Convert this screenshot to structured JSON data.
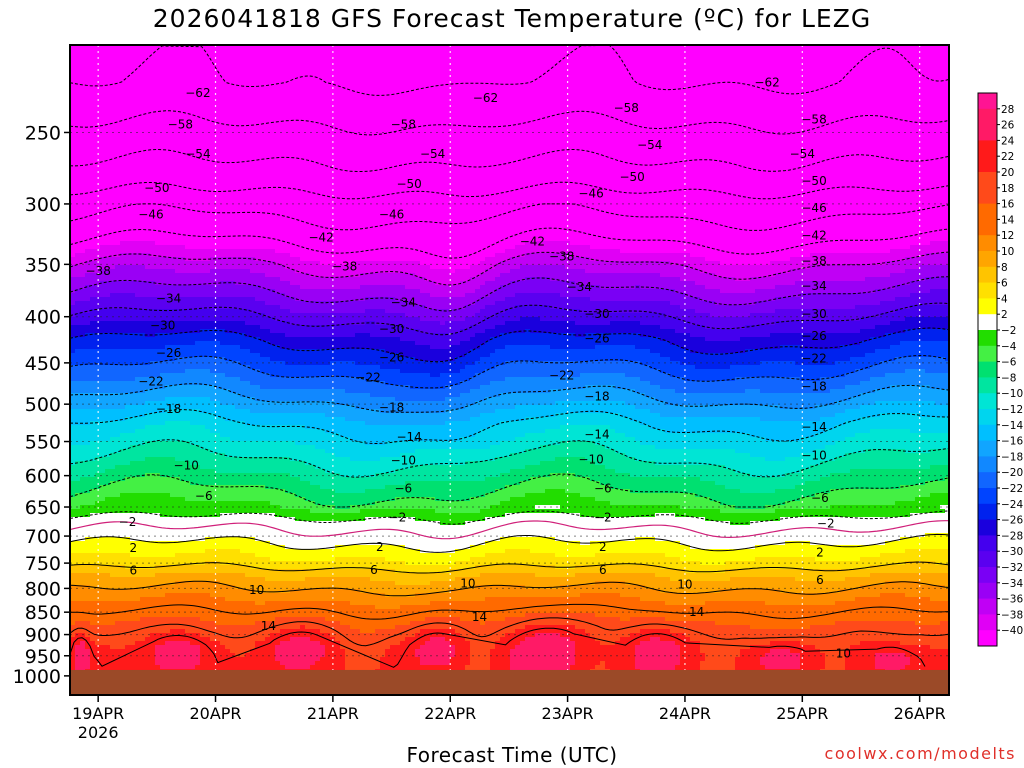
{
  "chart_data": {
    "type": "heatmap",
    "title": "2026041818 GFS Forecast Temperature (ºC) for LEZG",
    "xlabel": "Forecast Time (UTC)",
    "ylabel": "",
    "x_ticks": [
      {
        "label": "19APR",
        "sub": "2026",
        "day": 0
      },
      {
        "label": "20APR",
        "sub": "",
        "day": 1
      },
      {
        "label": "21APR",
        "sub": "",
        "day": 2
      },
      {
        "label": "22APR",
        "sub": "",
        "day": 3
      },
      {
        "label": "23APR",
        "sub": "",
        "day": 4
      },
      {
        "label": "24APR",
        "sub": "",
        "day": 5
      },
      {
        "label": "25APR",
        "sub": "",
        "day": 6
      },
      {
        "label": "26APR",
        "sub": "",
        "day": 7
      }
    ],
    "xlim_days": [
      -0.24,
      7.25
    ],
    "y_ticks": [
      250,
      300,
      350,
      400,
      450,
      500,
      550,
      600,
      650,
      700,
      750,
      800,
      850,
      900,
      950,
      1000
    ],
    "ylim_hpa": [
      1050,
      200
    ],
    "y_scale": "log-pressure",
    "ground_level_hpa": 985,
    "colorbar_ticks": [
      28,
      26,
      24,
      22,
      20,
      18,
      16,
      14,
      12,
      10,
      8,
      6,
      4,
      2,
      -2,
      -4,
      -6,
      -8,
      -10,
      -12,
      -14,
      -16,
      -18,
      -20,
      -22,
      -24,
      -26,
      -28,
      -30,
      -32,
      -34,
      -36,
      -38,
      -40
    ],
    "colors": {
      "ground": "#9b4a28",
      "negative_contour": "#000000",
      "positive_contour": "#000000",
      "zero_contour": "#d0207a"
    },
    "profile_temperatures_c": {
      "220": -62,
      "250": -57,
      "275": -53,
      "300": -48,
      "325": -43,
      "350": -38,
      "375": -34,
      "400": -30,
      "425": -26,
      "450": -23,
      "475": -20,
      "500": -17,
      "525": -14,
      "550": -12,
      "575": -10,
      "600": -8,
      "625": -6,
      "650": -4,
      "675": -1,
      "700": 1,
      "725": 3,
      "750": 5,
      "775": 8,
      "800": 10,
      "825": 12,
      "850": 14,
      "875": 16,
      "900": 18,
      "925": 20,
      "950": 21,
      "985": 22
    },
    "contour_labels": [
      {
        "v": -62,
        "d": 0.85,
        "p": 226
      },
      {
        "v": -62,
        "d": 3.3,
        "p": 229
      },
      {
        "v": -62,
        "d": 5.7,
        "p": 220
      },
      {
        "v": -58,
        "d": 0.7,
        "p": 245
      },
      {
        "v": -58,
        "d": 2.6,
        "p": 245
      },
      {
        "v": -58,
        "d": 4.5,
        "p": 235
      },
      {
        "v": -58,
        "d": 6.1,
        "p": 242
      },
      {
        "v": -54,
        "d": 0.85,
        "p": 264
      },
      {
        "v": -54,
        "d": 2.85,
        "p": 264
      },
      {
        "v": -54,
        "d": 4.7,
        "p": 258
      },
      {
        "v": -54,
        "d": 6.0,
        "p": 264
      },
      {
        "v": -50,
        "d": 0.5,
        "p": 288
      },
      {
        "v": -50,
        "d": 2.65,
        "p": 285
      },
      {
        "v": -50,
        "d": 4.55,
        "p": 280
      },
      {
        "v": -50,
        "d": 6.1,
        "p": 283
      },
      {
        "v": -46,
        "d": 0.45,
        "p": 308
      },
      {
        "v": -46,
        "d": 2.5,
        "p": 308
      },
      {
        "v": -46,
        "d": 4.2,
        "p": 292
      },
      {
        "v": -46,
        "d": 6.1,
        "p": 303
      },
      {
        "v": -42,
        "d": 1.9,
        "p": 327
      },
      {
        "v": -42,
        "d": 3.7,
        "p": 330
      },
      {
        "v": -42,
        "d": 6.1,
        "p": 325
      },
      {
        "v": -38,
        "d": 0.0,
        "p": 356
      },
      {
        "v": -38,
        "d": 2.1,
        "p": 352
      },
      {
        "v": -38,
        "d": 3.95,
        "p": 343
      },
      {
        "v": -38,
        "d": 6.1,
        "p": 347
      },
      {
        "v": -34,
        "d": 0.6,
        "p": 382
      },
      {
        "v": -34,
        "d": 2.6,
        "p": 386
      },
      {
        "v": -34,
        "d": 4.1,
        "p": 371
      },
      {
        "v": -34,
        "d": 6.1,
        "p": 370
      },
      {
        "v": -30,
        "d": 0.55,
        "p": 409
      },
      {
        "v": -30,
        "d": 2.5,
        "p": 413
      },
      {
        "v": -30,
        "d": 4.25,
        "p": 397
      },
      {
        "v": -30,
        "d": 6.1,
        "p": 397
      },
      {
        "v": -26,
        "d": 0.6,
        "p": 439
      },
      {
        "v": -26,
        "d": 2.5,
        "p": 444
      },
      {
        "v": -26,
        "d": 4.25,
        "p": 423
      },
      {
        "v": -26,
        "d": 6.1,
        "p": 420
      },
      {
        "v": -22,
        "d": 0.45,
        "p": 472
      },
      {
        "v": -22,
        "d": 2.3,
        "p": 467
      },
      {
        "v": -22,
        "d": 3.95,
        "p": 465
      },
      {
        "v": -22,
        "d": 6.1,
        "p": 445
      },
      {
        "v": -18,
        "d": 0.6,
        "p": 506
      },
      {
        "v": -18,
        "d": 2.5,
        "p": 504
      },
      {
        "v": -18,
        "d": 4.25,
        "p": 490
      },
      {
        "v": -18,
        "d": 6.1,
        "p": 478
      },
      {
        "v": -14,
        "d": 2.65,
        "p": 544
      },
      {
        "v": -14,
        "d": 4.25,
        "p": 540
      },
      {
        "v": -14,
        "d": 6.1,
        "p": 530
      },
      {
        "v": -10,
        "d": 0.75,
        "p": 585
      },
      {
        "v": -10,
        "d": 2.6,
        "p": 577
      },
      {
        "v": -10,
        "d": 4.2,
        "p": 576
      },
      {
        "v": -10,
        "d": 6.1,
        "p": 570
      },
      {
        "v": -6,
        "d": 0.9,
        "p": 632
      },
      {
        "v": -6,
        "d": 2.6,
        "p": 620
      },
      {
        "v": -6,
        "d": 4.3,
        "p": 620
      },
      {
        "v": -6,
        "d": 6.15,
        "p": 635
      },
      {
        "v": -2,
        "d": 0.25,
        "p": 675
      },
      {
        "v": -2,
        "d": 2.55,
        "p": 668
      },
      {
        "v": -2,
        "d": 4.3,
        "p": 668
      },
      {
        "v": -2,
        "d": 6.2,
        "p": 678
      },
      {
        "v": 2,
        "d": 0.3,
        "p": 722
      },
      {
        "v": 2,
        "d": 2.4,
        "p": 720
      },
      {
        "v": 2,
        "d": 4.3,
        "p": 720
      },
      {
        "v": 2,
        "d": 6.15,
        "p": 730
      },
      {
        "v": 6,
        "d": 0.3,
        "p": 764
      },
      {
        "v": 6,
        "d": 2.35,
        "p": 763
      },
      {
        "v": 6,
        "d": 4.3,
        "p": 763
      },
      {
        "v": 6,
        "d": 6.15,
        "p": 783
      },
      {
        "v": 10,
        "d": 1.35,
        "p": 803
      },
      {
        "v": 10,
        "d": 3.15,
        "p": 790
      },
      {
        "v": 10,
        "d": 5.0,
        "p": 792
      },
      {
        "v": 10,
        "d": 6.35,
        "p": 945
      },
      {
        "v": 14,
        "d": 1.45,
        "p": 880
      },
      {
        "v": 14,
        "d": 3.25,
        "p": 860
      },
      {
        "v": 14,
        "d": 5.1,
        "p": 850
      }
    ],
    "warm_cells": [
      {
        "d": 0.7,
        "p": 940,
        "w": 0.28,
        "h": 55
      },
      {
        "d": 1.75,
        "p": 930,
        "w": 0.35,
        "h": 70
      },
      {
        "d": 2.9,
        "p": 930,
        "w": 0.3,
        "h": 70
      },
      {
        "d": 3.8,
        "p": 925,
        "w": 0.42,
        "h": 80
      },
      {
        "d": 4.75,
        "p": 930,
        "w": 0.32,
        "h": 70
      },
      {
        "d": 5.8,
        "p": 955,
        "w": 0.28,
        "h": 40
      },
      {
        "d": 6.75,
        "p": 960,
        "w": 0.2,
        "h": 35
      },
      {
        "d": -0.15,
        "p": 940,
        "w": 0.1,
        "h": 60
      }
    ]
  },
  "footer": {
    "credit": "coolwx.com/modelts"
  }
}
